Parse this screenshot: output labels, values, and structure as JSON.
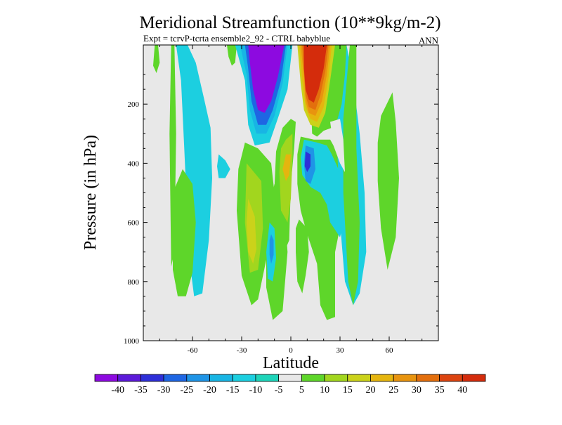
{
  "chart_data": {
    "type": "contour",
    "title": "Meridional Streamfunction (10**9kg/m-2)",
    "subtitle": "Expt = tcrvP-tcrta  ensemble2_92 - CTRL babyblue",
    "season": "ANN",
    "xlabel": "Latitude",
    "ylabel": "Pressure (in hPa)",
    "xlim": [
      -90,
      90
    ],
    "ylim": [
      1000,
      0
    ],
    "x_ticks": [
      -60,
      -30,
      0,
      30,
      60
    ],
    "y_ticks": [
      200,
      400,
      600,
      800,
      1000
    ],
    "missing_color": "#e8e8e8",
    "colorbar": {
      "levels": [
        -40,
        -35,
        -30,
        -25,
        -20,
        -15,
        -10,
        -5,
        5,
        10,
        15,
        20,
        25,
        30,
        35,
        40
      ],
      "colors": [
        "#8d0ae0",
        "#5c1ad9",
        "#2e2fd8",
        "#1e66e3",
        "#1f94e6",
        "#18b5e4",
        "#1ccfe0",
        "#1ed4b9",
        "#e8e8e8",
        "#5ed62a",
        "#a2d61e",
        "#cbd21a",
        "#e5b50f",
        "#e8940f",
        "#e36f0d",
        "#dc4410",
        "#d42c0c"
      ]
    },
    "regions": [
      {
        "color": "#5ed62a",
        "pts": [
          [
            -83,
            0
          ],
          [
            -81,
            0
          ],
          [
            -80,
            60
          ],
          [
            -82,
            95
          ],
          [
            -84,
            70
          ]
        ]
      },
      {
        "color": "#5ed62a",
        "pts": [
          [
            -73,
            0
          ],
          [
            -71,
            0
          ],
          [
            -70,
            300
          ],
          [
            -71,
            700
          ],
          [
            -73,
            750
          ],
          [
            -74,
            300
          ]
        ]
      },
      {
        "color": "#1ccfe0",
        "pts": [
          [
            -70,
            0
          ],
          [
            -63,
            0
          ],
          [
            -58,
            60
          ],
          [
            -53,
            180
          ],
          [
            -49,
            280
          ],
          [
            -48,
            450
          ],
          [
            -50,
            660
          ],
          [
            -54,
            840
          ],
          [
            -59,
            850
          ],
          [
            -62,
            720
          ],
          [
            -65,
            350
          ],
          [
            -67,
            120
          ]
        ]
      },
      {
        "color": "#5ed62a",
        "pts": [
          [
            -66,
            420
          ],
          [
            -60,
            470
          ],
          [
            -58,
            600
          ],
          [
            -60,
            770
          ],
          [
            -64,
            850
          ],
          [
            -69,
            850
          ],
          [
            -72,
            760
          ],
          [
            -72,
            500
          ]
        ]
      },
      {
        "color": "#5ed62a",
        "pts": [
          [
            -39,
            0
          ],
          [
            -33,
            0
          ],
          [
            -34,
            60
          ],
          [
            -36,
            70
          ],
          [
            -38,
            40
          ]
        ]
      },
      {
        "color": "#1ccfe0",
        "pts": [
          [
            -44,
            370
          ],
          [
            -40,
            390
          ],
          [
            -37,
            420
          ],
          [
            -40,
            450
          ],
          [
            -44,
            450
          ],
          [
            -45,
            410
          ]
        ]
      },
      {
        "color": "#1ccfe0",
        "pts": [
          [
            -34,
            0
          ],
          [
            1,
            0
          ],
          [
            -2,
            150
          ],
          [
            -8,
            250
          ],
          [
            -13,
            330
          ],
          [
            -22,
            340
          ],
          [
            -26,
            270
          ],
          [
            -28,
            120
          ]
        ]
      },
      {
        "color": "#18b5e4",
        "pts": [
          [
            -31,
            0
          ],
          [
            -2,
            0
          ],
          [
            -5,
            130
          ],
          [
            -10,
            240
          ],
          [
            -15,
            300
          ],
          [
            -21,
            300
          ],
          [
            -25,
            220
          ],
          [
            -27,
            100
          ]
        ]
      },
      {
        "color": "#1e66e3",
        "pts": [
          [
            -28,
            0
          ],
          [
            -3,
            0
          ],
          [
            -6,
            120
          ],
          [
            -11,
            220
          ],
          [
            -15,
            270
          ],
          [
            -20,
            270
          ],
          [
            -24,
            190
          ],
          [
            -26,
            80
          ]
        ]
      },
      {
        "color": "#8d0ae0",
        "pts": [
          [
            -26,
            0
          ],
          [
            -4,
            0
          ],
          [
            -8,
            110
          ],
          [
            -12,
            190
          ],
          [
            -16,
            230
          ],
          [
            -20,
            220
          ],
          [
            -23,
            150
          ],
          [
            -25,
            60
          ]
        ]
      },
      {
        "color": "#5ed62a",
        "pts": [
          [
            -28,
            330
          ],
          [
            -20,
            350
          ],
          [
            -12,
            400
          ],
          [
            -10,
            500
          ],
          [
            -14,
            700
          ],
          [
            -20,
            860
          ],
          [
            -24,
            880
          ],
          [
            -30,
            780
          ],
          [
            -33,
            560
          ],
          [
            -32,
            420
          ]
        ]
      },
      {
        "color": "#a2d61e",
        "pts": [
          [
            -27,
            400
          ],
          [
            -18,
            460
          ],
          [
            -17,
            620
          ],
          [
            -20,
            760
          ],
          [
            -25,
            770
          ],
          [
            -28,
            600
          ]
        ]
      },
      {
        "color": "#cbd21a",
        "pts": [
          [
            -26,
            520
          ],
          [
            -22,
            580
          ],
          [
            -21,
            690
          ],
          [
            -23,
            740
          ],
          [
            -26,
            700
          ],
          [
            -27,
            600
          ]
        ]
      },
      {
        "color": "#5ed62a",
        "pts": [
          [
            -10,
            470
          ],
          [
            -4,
            540
          ],
          [
            -2,
            700
          ],
          [
            -5,
            900
          ],
          [
            -11,
            930
          ],
          [
            -15,
            820
          ],
          [
            -15,
            640
          ],
          [
            -12,
            520
          ]
        ]
      },
      {
        "color": "#1ccfe0",
        "pts": [
          [
            -13,
            600
          ],
          [
            -10,
            620
          ],
          [
            -9,
            720
          ],
          [
            -11,
            800
          ],
          [
            -14,
            790
          ],
          [
            -15,
            700
          ]
        ]
      },
      {
        "color": "#1f94e6",
        "pts": [
          [
            -12,
            640
          ],
          [
            -10.5,
            660
          ],
          [
            -10.5,
            710
          ],
          [
            -12,
            740
          ],
          [
            -13,
            710
          ],
          [
            -13,
            660
          ]
        ]
      },
      {
        "color": "#5ed62a",
        "pts": [
          [
            -5,
            280
          ],
          [
            0,
            250
          ],
          [
            3,
            260
          ],
          [
            2,
            350
          ],
          [
            0,
            470
          ],
          [
            -1,
            660
          ],
          [
            -4,
            700
          ],
          [
            -8,
            620
          ],
          [
            -10,
            480
          ],
          [
            -9,
            360
          ]
        ]
      },
      {
        "color": "#a2d61e",
        "pts": [
          [
            -3,
            320
          ],
          [
            1,
            300
          ],
          [
            1,
            380
          ],
          [
            0,
            520
          ],
          [
            -2,
            600
          ],
          [
            -6,
            560
          ],
          [
            -7,
            430
          ],
          [
            -6,
            350
          ]
        ]
      },
      {
        "color": "#e5b50f",
        "pts": [
          [
            -3,
            370
          ],
          [
            0,
            370
          ],
          [
            -1,
            440
          ],
          [
            -3,
            460
          ],
          [
            -5,
            420
          ]
        ]
      },
      {
        "color": "#5ed62a",
        "pts": [
          [
            5,
            590
          ],
          [
            10,
            620
          ],
          [
            11,
            700
          ],
          [
            9,
            780
          ],
          [
            7,
            840
          ],
          [
            4,
            800
          ],
          [
            3,
            700
          ],
          [
            3,
            620
          ]
        ]
      },
      {
        "color": "#5ed62a",
        "pts": [
          [
            6,
            310
          ],
          [
            14,
            320
          ],
          [
            24,
            320
          ],
          [
            27,
            350
          ],
          [
            30,
            380
          ],
          [
            32,
            420
          ],
          [
            32,
            560
          ],
          [
            27,
            700
          ],
          [
            27,
            920
          ],
          [
            22,
            930
          ],
          [
            18,
            880
          ],
          [
            16,
            740
          ],
          [
            10,
            640
          ],
          [
            6,
            560
          ],
          [
            4,
            470
          ],
          [
            4,
            370
          ]
        ]
      },
      {
        "color": "#1ccfe0",
        "pts": [
          [
            8,
            320
          ],
          [
            16,
            330
          ],
          [
            22,
            340
          ],
          [
            25,
            370
          ],
          [
            29,
            420
          ],
          [
            33,
            470
          ],
          [
            34,
            560
          ],
          [
            30,
            650
          ],
          [
            24,
            600
          ],
          [
            22,
            540
          ],
          [
            18,
            500
          ],
          [
            12,
            480
          ],
          [
            7,
            440
          ],
          [
            6,
            380
          ]
        ]
      },
      {
        "color": "#1f94e6",
        "pts": [
          [
            9,
            340
          ],
          [
            14,
            350
          ],
          [
            15,
            420
          ],
          [
            12,
            470
          ],
          [
            9,
            460
          ],
          [
            8,
            400
          ]
        ]
      },
      {
        "color": "#2e2fd8",
        "pts": [
          [
            9,
            360
          ],
          [
            12,
            370
          ],
          [
            12,
            410
          ],
          [
            10,
            430
          ],
          [
            8.5,
            410
          ]
        ]
      },
      {
        "color": "#1ccfe0",
        "pts": [
          [
            29,
            0
          ],
          [
            34,
            0
          ],
          [
            38,
            120
          ],
          [
            42,
            300
          ],
          [
            45,
            500
          ],
          [
            46,
            700
          ],
          [
            42,
            840
          ],
          [
            38,
            880
          ],
          [
            33,
            800
          ],
          [
            30,
            600
          ],
          [
            28,
            300
          ],
          [
            27,
            100
          ]
        ]
      },
      {
        "color": "#5ed62a",
        "pts": [
          [
            36,
            0
          ],
          [
            40,
            0
          ],
          [
            40,
            120
          ],
          [
            40,
            350
          ],
          [
            42,
            600
          ],
          [
            41,
            800
          ],
          [
            38,
            880
          ],
          [
            35,
            800
          ],
          [
            32,
            500
          ],
          [
            32,
            250
          ]
        ]
      },
      {
        "color": "#5ed62a",
        "pts": [
          [
            27,
            0
          ],
          [
            34,
            0
          ],
          [
            33,
            100
          ],
          [
            31,
            200
          ],
          [
            28,
            260
          ],
          [
            25,
            280
          ],
          [
            20,
            290
          ],
          [
            16,
            310
          ],
          [
            13,
            300
          ],
          [
            12,
            150
          ],
          [
            12,
            0
          ]
        ]
      },
      {
        "color": "#e8e8e8",
        "pts": [
          [
            24,
            260
          ],
          [
            30,
            250
          ],
          [
            32,
            320
          ],
          [
            33,
            430
          ],
          [
            30,
            400
          ],
          [
            26,
            340
          ]
        ]
      },
      {
        "color": "#cbd21a",
        "pts": [
          [
            4,
            0
          ],
          [
            27,
            0
          ],
          [
            24,
            120
          ],
          [
            21,
            230
          ],
          [
            17,
            280
          ],
          [
            12,
            270
          ],
          [
            8,
            220
          ],
          [
            6,
            130
          ]
        ]
      },
      {
        "color": "#e5b50f",
        "pts": [
          [
            5,
            0
          ],
          [
            25,
            0
          ],
          [
            23,
            110
          ],
          [
            20,
            210
          ],
          [
            16,
            260
          ],
          [
            12,
            250
          ],
          [
            9,
            210
          ],
          [
            7,
            120
          ]
        ]
      },
      {
        "color": "#e8940f",
        "pts": [
          [
            6,
            0
          ],
          [
            24,
            0
          ],
          [
            22,
            100
          ],
          [
            19,
            190
          ],
          [
            15,
            240
          ],
          [
            11,
            230
          ],
          [
            9,
            190
          ],
          [
            8,
            110
          ]
        ]
      },
      {
        "color": "#e36f0d",
        "pts": [
          [
            7,
            0
          ],
          [
            23,
            0
          ],
          [
            21,
            90
          ],
          [
            18,
            170
          ],
          [
            15,
            220
          ],
          [
            11,
            210
          ],
          [
            9,
            170
          ],
          [
            8,
            90
          ]
        ]
      },
      {
        "color": "#d42c0c",
        "pts": [
          [
            8,
            0
          ],
          [
            22,
            0
          ],
          [
            20,
            80
          ],
          [
            17,
            150
          ],
          [
            14,
            195
          ],
          [
            11,
            185
          ],
          [
            9,
            150
          ],
          [
            8,
            80
          ]
        ]
      },
      {
        "color": "#5ed62a",
        "pts": [
          [
            55,
            240
          ],
          [
            62,
            160
          ],
          [
            64,
            260
          ],
          [
            66,
            450
          ],
          [
            64,
            650
          ],
          [
            59,
            760
          ],
          [
            55,
            620
          ],
          [
            53,
            460
          ],
          [
            53,
            330
          ]
        ]
      }
    ]
  }
}
